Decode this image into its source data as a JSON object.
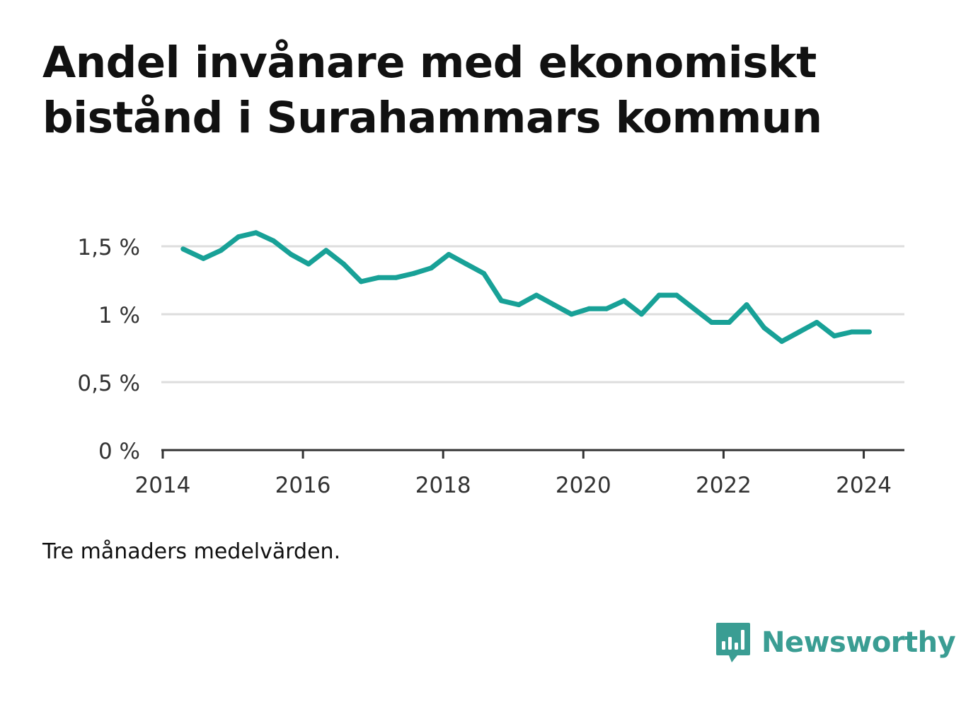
{
  "title": "Andel invånare med ekonomiskt bistånd i Surahammars kommun",
  "note": "Tre månaders medelvärden.",
  "brand": {
    "name": "Newsworthy",
    "icon": "bar-chart-speech-bubble-icon",
    "color": "#3a9d93"
  },
  "colors": {
    "line": "#18a197",
    "grid": "#dddddd",
    "axis": "#333333",
    "text": "#333333"
  },
  "chart_data": {
    "type": "line",
    "title": "Andel invånare med ekonomiskt bistånd i Surahammars kommun",
    "xlabel": "",
    "ylabel": "",
    "xlim": [
      2013.98,
      2024.58
    ],
    "ylim": [
      0,
      1.5
    ],
    "x_ticks": [
      2014,
      2016,
      2018,
      2020,
      2022,
      2024
    ],
    "x_tick_labels": [
      "2014",
      "2016",
      "2018",
      "2020",
      "2022",
      "2024"
    ],
    "y_ticks": [
      0,
      0.5,
      1,
      1.5
    ],
    "y_tick_labels": [
      "0 %",
      "0,5 %",
      "1 %",
      "1,5 %"
    ],
    "grid": true,
    "legend": "none",
    "series": [
      {
        "x": [
          2014.29,
          2014.58,
          2014.83,
          2015.08,
          2015.33,
          2015.58,
          2015.83,
          2016.08,
          2016.33,
          2016.58,
          2016.83,
          2017.08,
          2017.33,
          2017.58,
          2017.83,
          2018.08,
          2018.33,
          2018.58,
          2018.83,
          2019.08,
          2019.33,
          2019.58,
          2019.83,
          2020.08,
          2020.33,
          2020.58,
          2020.83,
          2021.08,
          2021.33,
          2021.58,
          2021.83,
          2022.08,
          2022.33,
          2022.58,
          2022.83,
          2023.08,
          2023.33,
          2023.58,
          2023.83,
          2024.08
        ],
        "values": [
          1.48,
          1.41,
          1.47,
          1.57,
          1.6,
          1.54,
          1.44,
          1.37,
          1.47,
          1.37,
          1.24,
          1.27,
          1.27,
          1.3,
          1.34,
          1.44,
          1.37,
          1.3,
          1.1,
          1.07,
          1.14,
          1.07,
          1.0,
          1.04,
          1.04,
          1.1,
          1.0,
          1.14,
          1.14,
          1.04,
          0.94,
          0.94,
          1.07,
          0.9,
          0.8,
          0.87,
          0.94,
          0.84,
          0.87,
          0.87
        ]
      }
    ]
  }
}
